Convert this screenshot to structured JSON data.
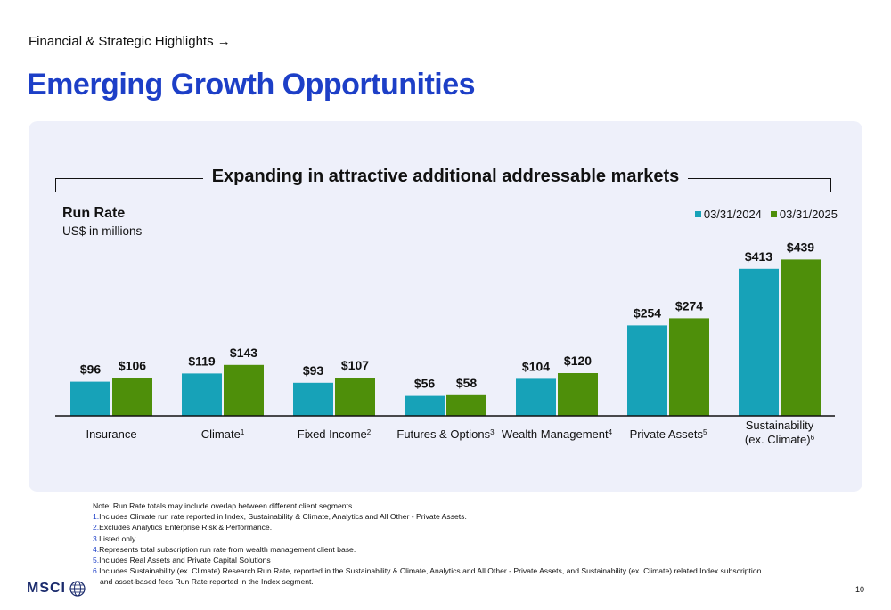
{
  "breadcrumb": "Financial & Strategic Highlights →",
  "page_title": "Emerging Growth Opportunities",
  "headline": "Expanding in attractive additional addressable markets",
  "runrate_title": "Run Rate",
  "runrate_subtitle": "US$ in millions",
  "colors": {
    "series1": "#17a2b8",
    "series2": "#4e8f0a",
    "title": "#1d3fc7",
    "panel": "#eef0fa"
  },
  "chart_data": {
    "type": "bar",
    "categories": [
      "Insurance",
      "Climate",
      "Fixed Income",
      "Futures & Options",
      "Wealth Management",
      "Private Assets",
      "Sustainability (ex. Climate)"
    ],
    "category_label_lines": [
      [
        "Insurance"
      ],
      [
        "Climate"
      ],
      [
        "Fixed Income"
      ],
      [
        "Futures & Options"
      ],
      [
        "Wealth Management"
      ],
      [
        "Private Assets"
      ],
      [
        "Sustainability",
        "(ex. Climate)"
      ]
    ],
    "category_superscripts": [
      "",
      "1",
      "2",
      "3",
      "4",
      "5",
      "6"
    ],
    "series": [
      {
        "name": "03/31/2024",
        "values": [
          96,
          119,
          93,
          56,
          104,
          254,
          413
        ],
        "labels": [
          "$96",
          "$119",
          "$93",
          "$56",
          "$104",
          "$254",
          "$413"
        ]
      },
      {
        "name": "03/31/2025",
        "values": [
          106,
          143,
          107,
          58,
          120,
          274,
          439
        ],
        "labels": [
          "$106",
          "$143",
          "$107",
          "$58",
          "$120",
          "$274",
          "$439"
        ]
      }
    ],
    "ylabel": "Run Rate",
    "legend": "top-right",
    "grid": false
  },
  "notes": {
    "intro": "Note: Run Rate totals may include overlap between different client segments.",
    "items": [
      {
        "num": "1.",
        "text": " Includes Climate run rate reported in Index, Sustainability & Climate, Analytics and All Other - Private Assets."
      },
      {
        "num": "2.",
        "text": "Excludes Analytics Enterprise Risk & Performance."
      },
      {
        "num": "3.",
        "text": "Listed only."
      },
      {
        "num": "4.",
        "text": "Represents total subscription run rate from wealth management client base."
      },
      {
        "num": "5.",
        "text": "Includes Real Assets and Private Capital Solutions"
      },
      {
        "num": "6.",
        "text": "Includes Sustainability (ex. Climate) Research Run Rate, reported in the Sustainability & Climate, Analytics and All Other - Private Assets, and Sustainability (ex. Climate) related Index subscription"
      }
    ],
    "continuation": "and asset-based fees Run Rate reported in the Index segment."
  },
  "logo_text": "MSCI",
  "page_number": "10"
}
